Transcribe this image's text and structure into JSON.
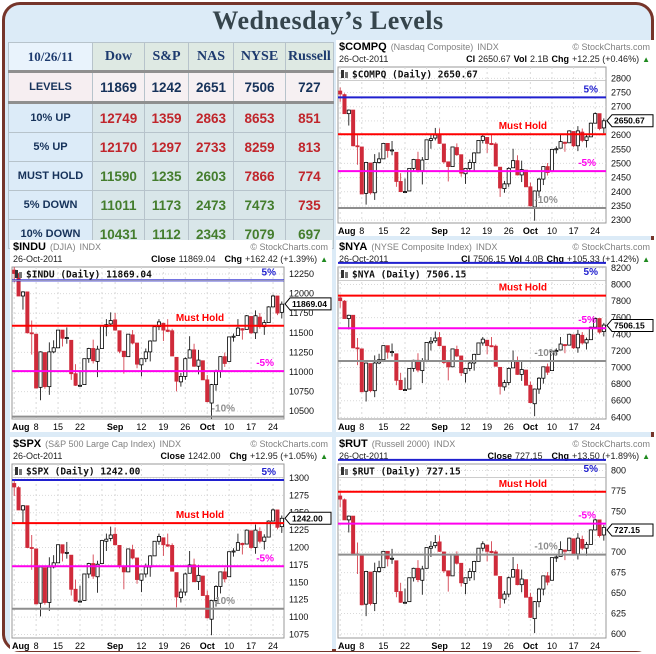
{
  "page": {
    "title": "Wednesday’s Levels"
  },
  "icons": {
    "up_arrow": "▲"
  },
  "palette": {
    "red": "#c0252b",
    "green": "#447d2d",
    "navy": "#16325a",
    "frame": "#76352a",
    "page_bg": "#dcebf7",
    "line_blue": "#2020cf",
    "line_red": "#ff0000",
    "line_magenta": "#ff00ee",
    "line_gray": "#8e8e8e",
    "candle_red": "#cf2b3a",
    "grid": "#d9d9d9"
  },
  "table": {
    "date_header": "10/26/11",
    "columns": [
      "Dow",
      "S&P",
      "NAS",
      "NYSE",
      "Russell"
    ],
    "rows": [
      {
        "label": "LEVELS",
        "values": [
          "11869",
          "1242",
          "2651",
          "7506",
          "727"
        ],
        "colors": [
          "n",
          "n",
          "n",
          "n",
          "n"
        ],
        "style": "levels"
      },
      {
        "label": "10% UP",
        "values": [
          "12749",
          "1359",
          "2863",
          "8653",
          "851"
        ],
        "colors": [
          "r",
          "r",
          "r",
          "r",
          "r"
        ]
      },
      {
        "label": "5% UP",
        "values": [
          "12170",
          "1297",
          "2733",
          "8259",
          "813"
        ],
        "colors": [
          "r",
          "r",
          "r",
          "r",
          "r"
        ]
      },
      {
        "label": "MUST HOLD",
        "values": [
          "11590",
          "1235",
          "2603",
          "7866",
          "774"
        ],
        "colors": [
          "g",
          "g",
          "g",
          "r",
          "r"
        ]
      },
      {
        "label": "5% DOWN",
        "values": [
          "11011",
          "1173",
          "2473",
          "7473",
          "735"
        ],
        "colors": [
          "g",
          "g",
          "g",
          "g",
          "r"
        ]
      },
      {
        "label": "10% DOWN",
        "values": [
          "10431",
          "1112",
          "2343",
          "7079",
          "697"
        ],
        "colors": [
          "g",
          "g",
          "g",
          "g",
          "g"
        ]
      }
    ]
  },
  "chart_data": {
    "type": "candlestick",
    "x_labels": [
      [
        "Aug",
        0
      ],
      [
        "8",
        5
      ],
      [
        "15",
        10
      ],
      [
        "22",
        15
      ],
      [
        "Sep",
        23
      ],
      [
        "12",
        29
      ],
      [
        "19",
        34
      ],
      [
        "26",
        39
      ],
      [
        "Oct",
        44
      ],
      [
        "10",
        49
      ],
      [
        "17",
        54
      ],
      [
        "24",
        59
      ]
    ],
    "week_gridlines": [
      0,
      5,
      10,
      15,
      20,
      23,
      29,
      34,
      39,
      44,
      49,
      54,
      59
    ],
    "base_range": [
      1074,
      1300
    ],
    "base_ohlc": [
      [
        1292,
        1298,
        1274,
        1287
      ],
      [
        1286,
        1288,
        1254,
        1254
      ],
      [
        1254,
        1261,
        1234,
        1260
      ],
      [
        1260,
        1260,
        1199,
        1200
      ],
      [
        1200,
        1218,
        1168,
        1199
      ],
      [
        1198,
        1198,
        1119,
        1119
      ],
      [
        1120,
        1173,
        1101,
        1172
      ],
      [
        1171,
        1171,
        1118,
        1121
      ],
      [
        1121,
        1186,
        1109,
        1172
      ],
      [
        1172,
        1189,
        1170,
        1178
      ],
      [
        1178,
        1204,
        1178,
        1204
      ],
      [
        1204,
        1204,
        1180,
        1192
      ],
      [
        1192,
        1208,
        1184,
        1193
      ],
      [
        1189,
        1189,
        1131,
        1140
      ],
      [
        1140,
        1154,
        1122,
        1123
      ],
      [
        1123,
        1145,
        1121,
        1123
      ],
      [
        1124,
        1162,
        1124,
        1162
      ],
      [
        1162,
        1178,
        1156,
        1177
      ],
      [
        1177,
        1190,
        1155,
        1159
      ],
      [
        1158,
        1181,
        1135,
        1176
      ],
      [
        1177,
        1210,
        1177,
        1210
      ],
      [
        1209,
        1220,
        1195,
        1212
      ],
      [
        1213,
        1230,
        1209,
        1218
      ],
      [
        1219,
        1229,
        1203,
        1204
      ],
      [
        1203,
        1203,
        1170,
        1173
      ],
      [
        1173,
        1173,
        1140,
        1165
      ],
      [
        1165,
        1198,
        1165,
        1198
      ],
      [
        1197,
        1204,
        1183,
        1185
      ],
      [
        1185,
        1185,
        1148,
        1154
      ],
      [
        1153,
        1162,
        1136,
        1162
      ],
      [
        1162,
        1177,
        1157,
        1172
      ],
      [
        1172,
        1189,
        1158,
        1188
      ],
      [
        1188,
        1209,
        1188,
        1209
      ],
      [
        1209,
        1220,
        1204,
        1216
      ],
      [
        1214,
        1214,
        1188,
        1204
      ],
      [
        1204,
        1220,
        1201,
        1202
      ],
      [
        1203,
        1206,
        1166,
        1166
      ],
      [
        1164,
        1164,
        1114,
        1129
      ],
      [
        1128,
        1141,
        1121,
        1136
      ],
      [
        1136,
        1164,
        1131,
        1162
      ],
      [
        1163,
        1195,
        1163,
        1175
      ],
      [
        1175,
        1184,
        1150,
        1151
      ],
      [
        1151,
        1175,
        1139,
        1160
      ],
      [
        1159,
        1159,
        1131,
        1131
      ],
      [
        1131,
        1138,
        1098,
        1099
      ],
      [
        1097,
        1125,
        1074,
        1124
      ],
      [
        1124,
        1146,
        1115,
        1144
      ],
      [
        1144,
        1165,
        1134,
        1165
      ],
      [
        1165,
        1171,
        1150,
        1155
      ],
      [
        1158,
        1194,
        1158,
        1194
      ],
      [
        1194,
        1199,
        1187,
        1195
      ],
      [
        1196,
        1220,
        1196,
        1207
      ],
      [
        1206,
        1207,
        1190,
        1204
      ],
      [
        1205,
        1226,
        1205,
        1225
      ],
      [
        1224,
        1224,
        1198,
        1200
      ],
      [
        1200,
        1233,
        1191,
        1225
      ],
      [
        1223,
        1229,
        1206,
        1209
      ],
      [
        1209,
        1219,
        1197,
        1215
      ],
      [
        1215,
        1239,
        1215,
        1238
      ],
      [
        1238,
        1256,
        1238,
        1254
      ],
      [
        1254,
        1254,
        1226,
        1229
      ],
      [
        1230,
        1246,
        1221,
        1242
      ]
    ],
    "charts": [
      {
        "symbol": "$COMPQ",
        "desc": "(Nasdaq Composite)",
        "tag": "INDX",
        "copyright": "© StockCharts.com",
        "date": "26-Oct-2011",
        "s1_label": "Cl",
        "s1": "2650.67",
        "s2_label": "Vol",
        "s2": "2.1B",
        "s3_label": "Chg",
        "s3": "+12.25 (+0.46%)",
        "inner_label": "$COMPQ (Daily) 2650.67",
        "close": 2650.67,
        "close_text": "2650.67",
        "axis_min": 2290,
        "axis_max": 2840,
        "ticks": [
          2800,
          2750,
          2700,
          2650,
          2600,
          2550,
          2500,
          2450,
          2400,
          2350,
          2300
        ],
        "map": [
          2298,
          2772
        ],
        "levels": {
          "up5": 2733,
          "hold": 2603,
          "dn5": 2473,
          "dn10": 2343
        },
        "level_labels": {
          "up5": "5%",
          "hold": "Must Hold",
          "dn5": "-5%",
          "dn10": "-10%"
        }
      },
      {
        "symbol": "$INDU",
        "desc": "(DJIA)",
        "tag": "INDX",
        "copyright": "© StockCharts.com",
        "date": "26-Oct-2011",
        "s1_label": "Close",
        "s1": "11869.04",
        "s2_label": "",
        "s2": "",
        "s3_label": "Chg",
        "s3": "+162.42 (+1.39%)",
        "inner_label": "$INDU (Daily) 11869.04",
        "close": 11869.04,
        "close_text": "11869.04",
        "axis_min": 10400,
        "axis_max": 12340,
        "ticks": [
          12250,
          12000,
          11750,
          11500,
          11250,
          11000,
          10750,
          10500
        ],
        "map": [
          10404,
          12370
        ],
        "levels": {
          "up5": 12170,
          "hold": 11590,
          "dn5": 11011,
          "dn10": 10431
        },
        "level_labels": {
          "up5": "5%",
          "hold": "Must Hold",
          "dn5": "-5%",
          "dn10": "-10%"
        }
      },
      {
        "symbol": "$NYA",
        "desc": "(NYSE Composite Index)",
        "tag": "INDX",
        "copyright": "© StockCharts.com",
        "date": "26-Oct-2011",
        "s1_label": "Cl",
        "s1": "7506.15",
        "s2_label": "Vol",
        "s2": "4.0B",
        "s3_label": "Chg",
        "s3": "+105.33 (+1.42%)",
        "inner_label": "$NYA (Daily) 7506.15",
        "close": 7506.15,
        "close_text": "7506.15",
        "axis_min": 6380,
        "axis_max": 8210,
        "ticks": [
          8200,
          8000,
          7800,
          7600,
          7400,
          7200,
          7000,
          6800,
          6600,
          6400
        ],
        "map": [
          6414,
          7890
        ],
        "levels": {
          "up5": 8259,
          "hold": 7866,
          "dn5": 7473,
          "dn10": 7079
        },
        "level_labels": {
          "up5": "5%",
          "hold": "Must Hold",
          "dn5": "-5%",
          "dn10": "-10%"
        }
      },
      {
        "symbol": "$SPX",
        "desc": "(S&P 500 Large Cap Index)",
        "tag": "INDX",
        "copyright": "© StockCharts.com",
        "date": "26-Oct-2011",
        "s1_label": "Close",
        "s1": "1242.00",
        "s2_label": "",
        "s2": "",
        "s3_label": "Chg",
        "s3": "+12.95 (+1.05%)",
        "inner_label": "$SPX (Daily) 1242.00",
        "close": 1242.0,
        "close_text": "1242.00",
        "axis_min": 1070,
        "axis_max": 1320,
        "ticks": [
          1300,
          1275,
          1250,
          1225,
          1200,
          1175,
          1150,
          1125,
          1100,
          1075
        ],
        "map": [
          1074,
          1300
        ],
        "levels": {
          "up5": 1297,
          "hold": 1235,
          "dn5": 1173,
          "dn10": 1112
        },
        "level_labels": {
          "up5": "5%",
          "hold": "Must Hold",
          "dn5": "-5%",
          "dn10": "-10%"
        }
      },
      {
        "symbol": "$RUT",
        "desc": "(Russell 2000)",
        "tag": "INDX",
        "copyright": "© StockCharts.com",
        "date": "26-Oct-2011",
        "s1_label": "Close",
        "s1": "727.15",
        "s2_label": "",
        "s2": "",
        "s3_label": "Chg",
        "s3": "+13.50 (+1.89%)",
        "inner_label": "$RUT (Daily) 727.15",
        "close": 727.15,
        "close_text": "727.15",
        "axis_min": 595,
        "axis_max": 808,
        "ticks": [
          800,
          775,
          750,
          725,
          700,
          675,
          650,
          625,
          600
        ],
        "map": [
          601,
          775
        ],
        "levels": {
          "up5": 813,
          "hold": 774,
          "dn5": 735,
          "dn10": 697
        },
        "level_labels": {
          "up5": "5%",
          "hold": "Must Hold",
          "dn5": "-5%",
          "dn10": "-10%"
        }
      }
    ]
  }
}
